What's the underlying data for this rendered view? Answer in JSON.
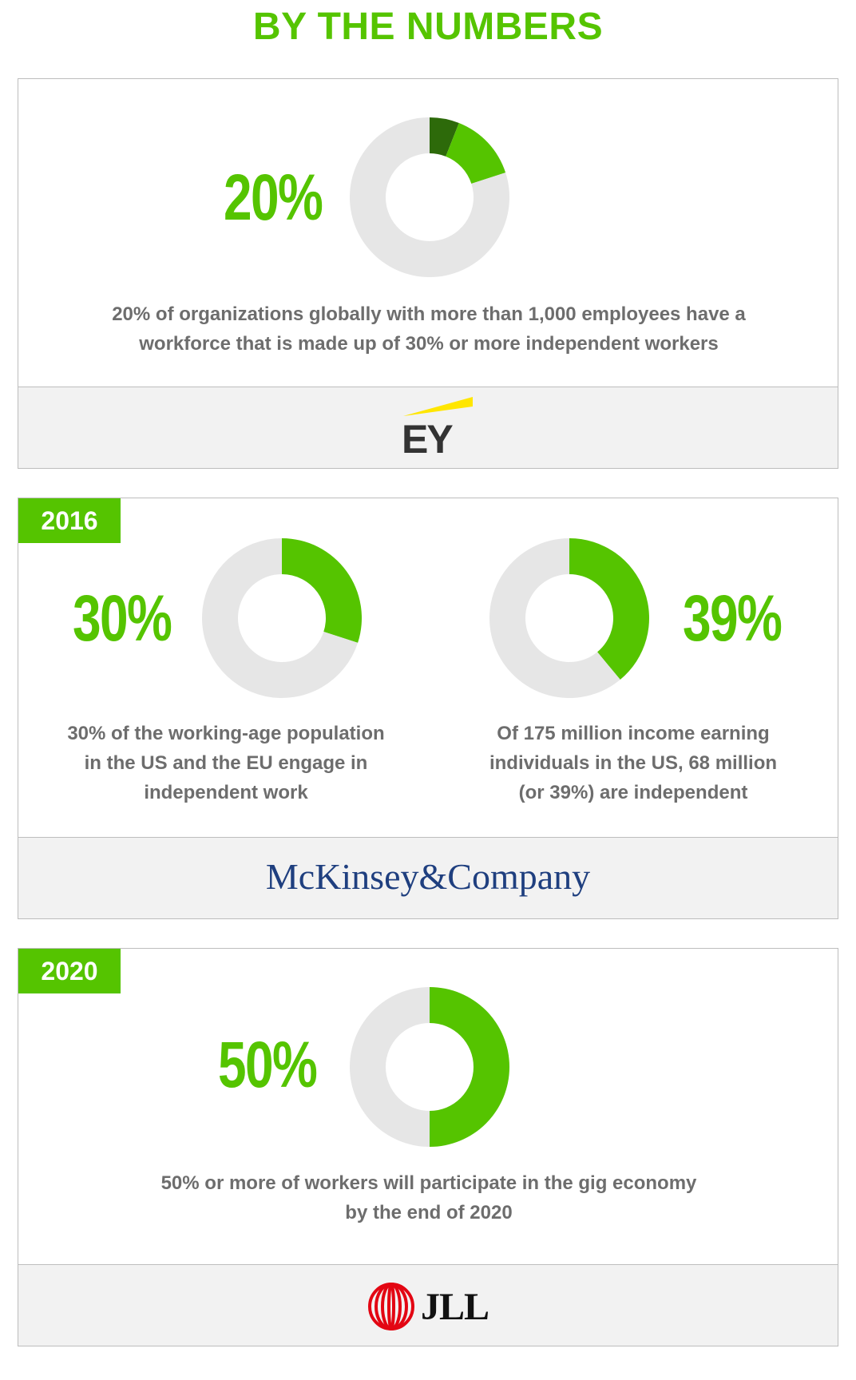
{
  "title": "BY THE NUMBERS",
  "colors": {
    "accent": "#55c400",
    "dark_accent": "#2d6a0a",
    "track": "#e6e6e6",
    "text": "#6d6d6d",
    "mckinsey": "#1f3f7f",
    "ey_yellow": "#ffe600",
    "jll_red": "#e30613"
  },
  "sections": [
    {
      "year": "",
      "stats": [
        {
          "value": "20%",
          "caption_lines": [
            "20% of organizations globally with more than 1,000 employees have a",
            "workforce that is made up of 30% or more independent workers"
          ]
        }
      ],
      "source": "EY"
    },
    {
      "year": "2016",
      "stats": [
        {
          "value": "30%",
          "caption_lines": [
            "30% of the working-age population",
            "in the US and the EU engage in",
            "independent work"
          ]
        },
        {
          "value": "39%",
          "caption_lines": [
            "Of 175 million income earning",
            "individuals in the US, 68 million",
            "(or 39%) are independent"
          ]
        }
      ],
      "source": "McKinsey&Company"
    },
    {
      "year": "2020",
      "stats": [
        {
          "value": "50%",
          "caption_lines": [
            "50% or more of workers will participate in the gig economy",
            "by the end of 2020"
          ]
        }
      ],
      "source": "JLL"
    }
  ],
  "chart_data": [
    {
      "type": "pie",
      "donut": true,
      "slices": [
        {
          "value": 6,
          "color": "#2d6a0a"
        },
        {
          "value": 14,
          "color": "#55c400"
        },
        {
          "value": 80,
          "color": "#e6e6e6"
        }
      ]
    },
    {
      "type": "pie",
      "donut": true,
      "slices": [
        {
          "value": 30,
          "color": "#55c400"
        },
        {
          "value": 70,
          "color": "#e6e6e6"
        }
      ]
    },
    {
      "type": "pie",
      "donut": true,
      "slices": [
        {
          "value": 39,
          "color": "#55c400"
        },
        {
          "value": 61,
          "color": "#e6e6e6"
        }
      ]
    },
    {
      "type": "pie",
      "donut": true,
      "slices": [
        {
          "value": 50,
          "color": "#55c400"
        },
        {
          "value": 50,
          "color": "#e6e6e6"
        }
      ]
    }
  ]
}
